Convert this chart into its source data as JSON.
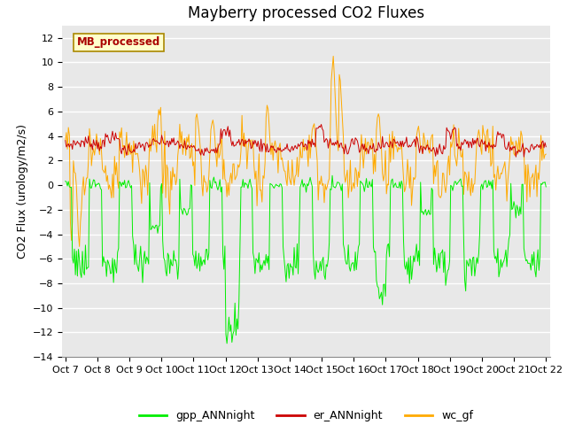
{
  "title": "Mayberry processed CO2 Fluxes",
  "ylabel": "CO2 Flux (urology/m2/s)",
  "ylim": [
    -14,
    13
  ],
  "yticks": [
    -14,
    -12,
    -10,
    -8,
    -6,
    -4,
    -2,
    0,
    2,
    4,
    6,
    8,
    10,
    12
  ],
  "n_points": 480,
  "legend_labels": [
    "gpp_ANNnight",
    "er_ANNnight",
    "wc_gf"
  ],
  "legend_colors": [
    "#00ee00",
    "#cc0000",
    "#ffaa00"
  ],
  "inset_label": "MB_processed",
  "inset_bg": "#ffffcc",
  "inset_text_color": "#aa0000",
  "plot_bg": "#e8e8e8",
  "x_tick_labels": [
    "Oct 7",
    "Oct 8",
    "Oct 9",
    "Oct 10",
    "Oct 11",
    "Oct 12",
    "Oct 13",
    "Oct 14",
    "Oct 15",
    "Oct 16",
    "Oct 17",
    "Oct 18",
    "Oct 19",
    "Oct 20",
    "Oct 21",
    "Oct 22"
  ],
  "gpp_color": "#00ee00",
  "er_color": "#cc0000",
  "wc_color": "#ffaa00",
  "line_width": 0.7,
  "title_fontsize": 12,
  "axis_label_fontsize": 9,
  "tick_fontsize": 8
}
